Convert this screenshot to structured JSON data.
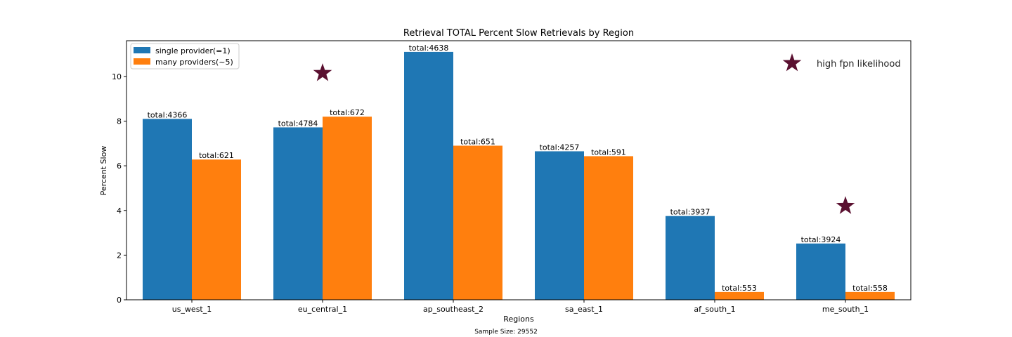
{
  "chart_data": {
    "type": "bar",
    "title": "Retrieval TOTAL Percent Slow Retrievals by Region",
    "xlabel": "Regions",
    "ylabel": "Percent Slow",
    "ylim": [
      0,
      11.6
    ],
    "yticks": [
      0,
      2,
      4,
      6,
      8,
      10
    ],
    "grid": false,
    "legend_position": "top-left",
    "categories": [
      "us_west_1",
      "eu_central_1",
      "ap_southeast_2",
      "sa_east_1",
      "af_south_1",
      "me_south_1"
    ],
    "series": [
      {
        "name": "single provider(=1)",
        "color": "#1f77b4",
        "values": [
          8.1,
          7.72,
          11.1,
          6.65,
          3.75,
          2.52
        ],
        "labels": [
          "total:4366",
          "total:4784",
          "total:4638",
          "total:4257",
          "total:3937",
          "total:3924"
        ]
      },
      {
        "name": "many providers(~5)",
        "color": "#ff7f0e",
        "values": [
          6.28,
          8.2,
          6.9,
          6.43,
          0.35,
          0.35
        ],
        "labels": [
          "total:621",
          "total:672",
          "total:651",
          "total:591",
          "total:553",
          "total:558"
        ]
      }
    ],
    "markers": [
      {
        "category_index": 1,
        "y": 10.15,
        "color": "#5a1030",
        "symbol": "star"
      },
      {
        "category_index": 5,
        "y": 4.2,
        "color": "#5a1030",
        "symbol": "star"
      }
    ],
    "marker_legend": {
      "symbol": "star",
      "color": "#5a1030",
      "label": "high fpn likelihood"
    },
    "footnote": "Sample Size: 29552"
  }
}
